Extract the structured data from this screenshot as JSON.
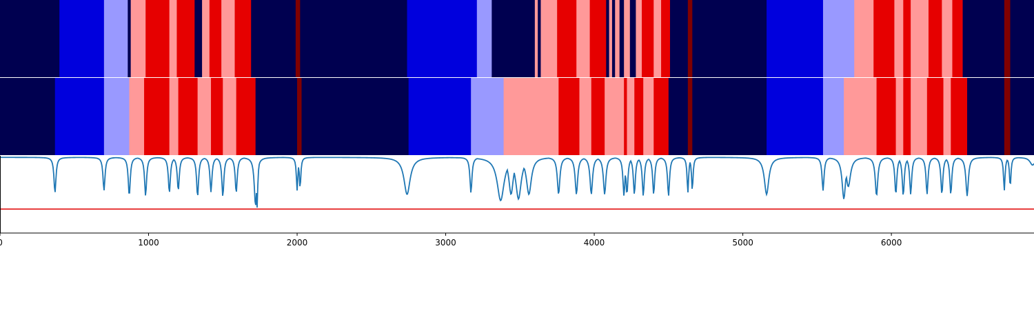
{
  "chart_data": {
    "type": "segmentation-timeline",
    "xlim": [
      0,
      6960
    ],
    "x_ticks": [
      0,
      1000,
      2000,
      3000,
      4000,
      5000,
      6000
    ],
    "x_tick_labels": [
      "0",
      "1000",
      "2000",
      "3000",
      "4000",
      "5000",
      "6000"
    ],
    "class_colors": {
      "0": "#000050",
      "1": "#0000dd",
      "2": "#9999ff",
      "3": "#ff9999",
      "4": "#e60000",
      "5": "#800000"
    },
    "segment_rows": [
      {
        "row": 1,
        "segments": [
          [
            0,
            400,
            0
          ],
          [
            400,
            700,
            1
          ],
          [
            700,
            860,
            2
          ],
          [
            860,
            880,
            0
          ],
          [
            880,
            980,
            3
          ],
          [
            980,
            1140,
            4
          ],
          [
            1140,
            1190,
            3
          ],
          [
            1190,
            1310,
            4
          ],
          [
            1310,
            1360,
            0
          ],
          [
            1360,
            1410,
            3
          ],
          [
            1410,
            1490,
            4
          ],
          [
            1490,
            1580,
            3
          ],
          [
            1580,
            1690,
            4
          ],
          [
            1690,
            1990,
            0
          ],
          [
            1990,
            2020,
            5
          ],
          [
            2020,
            2740,
            0
          ],
          [
            2740,
            3210,
            1
          ],
          [
            3210,
            3310,
            2
          ],
          [
            3310,
            3600,
            0
          ],
          [
            3600,
            3620,
            3
          ],
          [
            3620,
            3640,
            0
          ],
          [
            3640,
            3750,
            3
          ],
          [
            3750,
            3880,
            4
          ],
          [
            3880,
            3970,
            3
          ],
          [
            3970,
            4080,
            4
          ],
          [
            4080,
            4100,
            0
          ],
          [
            4100,
            4120,
            3
          ],
          [
            4120,
            4140,
            0
          ],
          [
            4140,
            4170,
            3
          ],
          [
            4170,
            4200,
            0
          ],
          [
            4200,
            4240,
            3
          ],
          [
            4240,
            4280,
            0
          ],
          [
            4280,
            4320,
            3
          ],
          [
            4320,
            4400,
            4
          ],
          [
            4400,
            4450,
            3
          ],
          [
            4450,
            4510,
            4
          ],
          [
            4510,
            4630,
            0
          ],
          [
            4630,
            4660,
            5
          ],
          [
            4660,
            5160,
            0
          ],
          [
            5160,
            5540,
            1
          ],
          [
            5540,
            5750,
            2
          ],
          [
            5750,
            5880,
            3
          ],
          [
            5880,
            6020,
            4
          ],
          [
            6020,
            6080,
            3
          ],
          [
            6080,
            6130,
            4
          ],
          [
            6130,
            6250,
            3
          ],
          [
            6250,
            6340,
            4
          ],
          [
            6340,
            6410,
            3
          ],
          [
            6410,
            6480,
            4
          ],
          [
            6480,
            6760,
            0
          ],
          [
            6760,
            6800,
            5
          ],
          [
            6800,
            6960,
            0
          ]
        ]
      },
      {
        "row": 2,
        "segments": [
          [
            0,
            370,
            0
          ],
          [
            370,
            700,
            1
          ],
          [
            700,
            870,
            2
          ],
          [
            870,
            970,
            3
          ],
          [
            970,
            1140,
            4
          ],
          [
            1140,
            1200,
            3
          ],
          [
            1200,
            1330,
            4
          ],
          [
            1330,
            1420,
            3
          ],
          [
            1420,
            1500,
            4
          ],
          [
            1500,
            1590,
            3
          ],
          [
            1590,
            1720,
            4
          ],
          [
            1720,
            2000,
            0
          ],
          [
            2000,
            2030,
            5
          ],
          [
            2030,
            2750,
            0
          ],
          [
            2750,
            3170,
            1
          ],
          [
            3170,
            3390,
            2
          ],
          [
            3390,
            3760,
            3
          ],
          [
            3760,
            3900,
            4
          ],
          [
            3900,
            3980,
            3
          ],
          [
            3980,
            4070,
            4
          ],
          [
            4070,
            4200,
            3
          ],
          [
            4200,
            4220,
            4
          ],
          [
            4220,
            4270,
            3
          ],
          [
            4270,
            4330,
            4
          ],
          [
            4330,
            4400,
            3
          ],
          [
            4400,
            4500,
            4
          ],
          [
            4500,
            4630,
            0
          ],
          [
            4630,
            4660,
            5
          ],
          [
            4660,
            5160,
            0
          ],
          [
            5160,
            5540,
            1
          ],
          [
            5540,
            5680,
            2
          ],
          [
            5680,
            5900,
            3
          ],
          [
            5900,
            6030,
            4
          ],
          [
            6030,
            6080,
            3
          ],
          [
            6080,
            6130,
            4
          ],
          [
            6130,
            6240,
            3
          ],
          [
            6240,
            6350,
            4
          ],
          [
            6350,
            6400,
            3
          ],
          [
            6400,
            6510,
            4
          ],
          [
            6510,
            6760,
            0
          ],
          [
            6760,
            6800,
            5
          ],
          [
            6800,
            6960,
            0
          ]
        ]
      }
    ],
    "line_series": {
      "color": "#1f77b4",
      "ylim": [
        0,
        1
      ],
      "baseline": 0.98,
      "dips": [
        [
          370,
          0.52,
          8
        ],
        [
          700,
          0.55,
          8
        ],
        [
          870,
          0.48,
          8
        ],
        [
          980,
          0.48,
          8
        ],
        [
          1140,
          0.52,
          8
        ],
        [
          1200,
          0.55,
          8
        ],
        [
          1330,
          0.47,
          8
        ],
        [
          1420,
          0.53,
          8
        ],
        [
          1500,
          0.47,
          8
        ],
        [
          1590,
          0.52,
          8
        ],
        [
          1720,
          0.35,
          10
        ],
        [
          1730,
          0.32,
          6
        ],
        [
          2000,
          0.55,
          6
        ],
        [
          2020,
          0.58,
          6
        ],
        [
          2740,
          0.5,
          25
        ],
        [
          3170,
          0.52,
          8
        ],
        [
          3370,
          0.42,
          28
        ],
        [
          3440,
          0.5,
          18
        ],
        [
          3490,
          0.44,
          22
        ],
        [
          3560,
          0.5,
          20
        ],
        [
          3760,
          0.5,
          10
        ],
        [
          3880,
          0.5,
          10
        ],
        [
          3980,
          0.5,
          10
        ],
        [
          4070,
          0.5,
          10
        ],
        [
          4200,
          0.48,
          8
        ],
        [
          4220,
          0.5,
          8
        ],
        [
          4270,
          0.5,
          8
        ],
        [
          4330,
          0.48,
          8
        ],
        [
          4400,
          0.5,
          8
        ],
        [
          4500,
          0.48,
          8
        ],
        [
          4630,
          0.52,
          6
        ],
        [
          4660,
          0.55,
          6
        ],
        [
          5160,
          0.5,
          18
        ],
        [
          5540,
          0.55,
          8
        ],
        [
          5680,
          0.44,
          14
        ],
        [
          5710,
          0.6,
          18
        ],
        [
          5900,
          0.48,
          10
        ],
        [
          6030,
          0.5,
          8
        ],
        [
          6080,
          0.48,
          8
        ],
        [
          6130,
          0.5,
          8
        ],
        [
          6240,
          0.5,
          8
        ],
        [
          6340,
          0.5,
          8
        ],
        [
          6400,
          0.5,
          8
        ],
        [
          6510,
          0.48,
          10
        ],
        [
          6760,
          0.55,
          6
        ],
        [
          6800,
          0.6,
          6
        ],
        [
          6950,
          0.88,
          20
        ]
      ]
    },
    "threshold_line": {
      "value": 0.31,
      "color": "#e00000"
    }
  }
}
